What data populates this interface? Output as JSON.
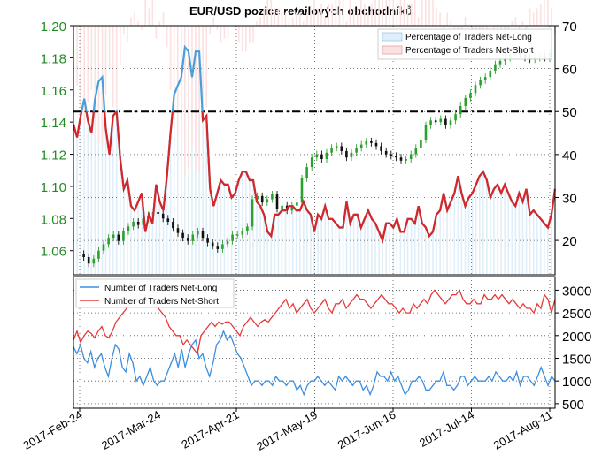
{
  "title": "EUR/USD pozice retailových obchodníků",
  "colors": {
    "price_up": "#2ca02c",
    "price_down": "#111111",
    "pct_line_long": "#4a9fd8",
    "pct_line_short": "#d62728",
    "pct_fill_long": "#dfeef8",
    "pct_fill_short": "#fbe1e1",
    "count_long": "#3c8fe0",
    "count_short": "#e83a3a",
    "left_axis_text": "#228b22",
    "hline": "#000000"
  },
  "chart_data": [
    {
      "type": "candlestick+line",
      "title": "EUR/USD pozice retailových obchodníků",
      "left_axis": {
        "ylim": [
          1.045,
          1.2
        ],
        "ticks": [
          "1.06",
          "1.08",
          "1.10",
          "1.12",
          "1.14",
          "1.16",
          "1.18",
          "1.20"
        ]
      },
      "right_axis": {
        "ylim": [
          12,
          70
        ],
        "ticks": [
          "20",
          "30",
          "40",
          "50",
          "60",
          "70"
        ]
      },
      "x_ticks": [
        "2017-Feb-24",
        "2017-Mar-24",
        "2017-Apr-21",
        "2017-May-19",
        "2017-Jun-16",
        "2017-Jul-14",
        "2017-Aug-11"
      ],
      "legend": {
        "placement": "top-right",
        "entries": [
          "Percentage of Traders Net-Long",
          "Percentage of Traders Net-Short"
        ]
      },
      "reference_line": {
        "axis": "right",
        "value": 50,
        "style": "dash-dot"
      },
      "grid": true,
      "price_close": [
        1.058,
        1.056,
        1.052,
        1.055,
        1.06,
        1.064,
        1.068,
        1.07,
        1.066,
        1.072,
        1.075,
        1.078,
        1.076,
        1.08,
        1.082,
        1.084,
        1.083,
        1.08,
        1.078,
        1.074,
        1.071,
        1.068,
        1.066,
        1.07,
        1.072,
        1.068,
        1.065,
        1.063,
        1.061,
        1.064,
        1.066,
        1.07,
        1.07,
        1.072,
        1.075,
        1.092,
        1.094,
        1.09,
        1.092,
        1.095,
        1.086,
        1.088,
        1.085,
        1.088,
        1.09,
        1.105,
        1.112,
        1.118,
        1.12,
        1.117,
        1.121,
        1.124,
        1.125,
        1.122,
        1.118,
        1.121,
        1.124,
        1.126,
        1.128,
        1.127,
        1.125,
        1.122,
        1.12,
        1.119,
        1.118,
        1.116,
        1.117,
        1.12,
        1.124,
        1.129,
        1.138,
        1.141,
        1.14,
        1.142,
        1.138,
        1.141,
        1.145,
        1.15,
        1.155,
        1.158,
        1.163,
        1.166,
        1.168,
        1.172,
        1.176,
        1.178,
        1.18,
        1.182,
        1.183,
        1.182,
        1.18,
        1.179,
        1.18,
        1.181,
        1.18,
        1.183
      ],
      "pct_net_long": [
        47,
        44,
        49,
        53,
        48,
        45,
        53,
        57,
        58,
        46,
        40,
        49,
        50,
        39,
        32,
        34,
        28,
        27,
        29,
        31,
        22,
        26,
        24,
        33,
        29,
        27,
        35,
        45,
        54,
        56,
        58,
        65,
        64,
        58,
        64,
        64,
        48,
        49,
        32,
        28,
        31,
        34,
        33,
        33,
        30,
        31,
        34,
        36,
        36,
        34,
        34,
        29,
        28,
        26,
        22,
        21,
        26,
        26,
        27,
        27,
        28,
        28,
        27,
        27,
        29,
        27,
        26,
        22,
        26,
        25,
        28,
        25,
        25,
        24,
        23,
        23,
        29,
        24,
        26,
        26,
        23,
        25,
        27,
        25,
        24,
        22,
        20,
        24,
        24,
        23,
        25,
        22,
        22,
        25,
        25,
        24,
        28,
        24,
        23,
        21,
        22,
        26,
        27,
        31,
        27,
        29,
        31,
        35,
        31,
        28,
        30,
        31,
        33,
        35,
        36,
        34,
        30,
        32,
        33,
        31,
        33,
        31,
        29,
        28,
        31,
        29,
        32,
        26,
        27,
        26,
        25,
        24,
        23,
        26,
        32
      ],
      "pct_net_short": [
        53,
        56,
        51,
        47,
        52,
        55,
        47,
        43,
        42,
        54,
        60,
        51,
        50,
        61,
        68,
        66,
        72,
        73,
        71,
        69,
        78,
        74,
        76,
        67,
        71,
        73,
        65,
        55,
        46,
        44,
        42,
        35,
        36,
        42,
        36,
        36,
        52,
        51,
        68,
        72,
        69,
        66,
        67,
        67,
        70,
        69,
        66,
        64,
        64,
        66,
        66,
        71,
        72,
        74,
        78,
        79,
        74,
        74,
        73,
        73,
        72,
        72,
        73,
        73,
        71,
        73,
        74,
        78,
        74,
        75,
        72,
        75,
        75,
        76,
        77,
        77,
        71,
        76,
        74,
        74,
        77,
        75,
        73,
        75,
        76,
        78,
        80,
        76,
        76,
        77,
        75,
        78,
        78,
        75,
        75,
        76,
        72,
        76,
        77,
        79,
        78,
        74,
        73,
        69,
        73,
        71,
        69,
        65,
        69,
        72,
        70,
        69,
        67,
        65,
        64,
        66,
        70,
        68,
        67,
        69,
        67,
        69,
        71,
        72,
        69,
        71,
        68,
        74,
        73,
        74,
        75,
        76,
        77,
        74,
        68
      ]
    },
    {
      "type": "line",
      "left_axis": {
        "ylim": [
          400,
          3300
        ],
        "ticks": []
      },
      "right_axis": {
        "ticks": [
          "500",
          "1000",
          "1500",
          "2000",
          "2500",
          "3000"
        ]
      },
      "legend": {
        "placement": "top-left",
        "entries": [
          "Number of Traders Net-Long",
          "Number of Traders Net-Short"
        ]
      },
      "grid": true,
      "series": [
        {
          "name": "Number of Traders Net-Long",
          "values": [
            1750,
            1600,
            1800,
            1500,
            1400,
            1650,
            1300,
            1500,
            1600,
            1300,
            1100,
            1500,
            1800,
            1700,
            1300,
            1200,
            1600,
            1400,
            1000,
            1100,
            900,
            1100,
            1300,
            1000,
            900,
            1000,
            1000,
            1200,
            1400,
            1600,
            1300,
            1700,
            1300,
            1600,
            1800,
            1900,
            1500,
            1600,
            1300,
            1100,
            1400,
            1800,
            1900,
            2100,
            1900,
            2000,
            1800,
            1600,
            1500,
            1300,
            1100,
            900,
            1000,
            1000,
            900,
            1000,
            1000,
            900,
            1100,
            1000,
            1000,
            900,
            1000,
            1000,
            800,
            900,
            700,
            900,
            1000,
            1000,
            1100,
            1000,
            900,
            1000,
            900,
            800,
            1100,
            1000,
            1100,
            1000,
            900,
            1000,
            1000,
            800,
            900,
            700,
            900,
            1200,
            1100,
            1100,
            1000,
            1200,
            1000,
            1100,
            900,
            700,
            800,
            1000,
            1000,
            1100,
            1000,
            800,
            800,
            900,
            1000,
            1000,
            1200,
            900,
            900,
            800,
            900,
            1100,
            1100,
            900,
            1000,
            1100,
            1000,
            1000,
            1000,
            1100,
            1000,
            1200,
            1100,
            1000,
            1000,
            1100,
            1000,
            1200,
            900,
            1100,
            1100,
            1000,
            900,
            1100,
            1300,
            1100,
            900,
            1100,
            1000
          ]
        },
        {
          "name": "Number of Traders Net-Short",
          "values": [
            1900,
            2100,
            1850,
            2000,
            2100,
            2050,
            1950,
            2100,
            2200,
            2000,
            1950,
            2100,
            2300,
            2400,
            2500,
            2600,
            2700,
            2800,
            2800,
            2750,
            2700,
            2800,
            2800,
            2700,
            2600,
            2500,
            2400,
            2200,
            2100,
            2000,
            2000,
            1800,
            1900,
            1800,
            1700,
            1600,
            2000,
            2100,
            2200,
            2300,
            2200,
            2300,
            2250,
            2300,
            2300,
            2200,
            2100,
            2000,
            2200,
            2300,
            2400,
            2300,
            2200,
            2300,
            2350,
            2300,
            2400,
            2500,
            2600,
            2700,
            2800,
            2600,
            2700,
            2500,
            2600,
            2700,
            2800,
            2600,
            2500,
            2600,
            2700,
            2800,
            2600,
            2500,
            2700,
            2700,
            2800,
            2600,
            2700,
            2800,
            2900,
            2800,
            2800,
            2700,
            2600,
            2700,
            2800,
            2900,
            2800,
            2700,
            2700,
            2600,
            2500,
            2600,
            2500,
            2500,
            2700,
            2600,
            2700,
            2800,
            2700,
            2900,
            3000,
            2900,
            2800,
            2700,
            2800,
            2900,
            2900,
            3000,
            2800,
            2700,
            2700,
            2800,
            2700,
            2700,
            2900,
            2800,
            2800,
            2900,
            2800,
            2900,
            2800,
            2700,
            2800,
            2700,
            2600,
            2700,
            2600,
            2600,
            2500,
            2700,
            2600,
            2900,
            2800,
            2500,
            2800
          ]
        }
      ]
    }
  ]
}
